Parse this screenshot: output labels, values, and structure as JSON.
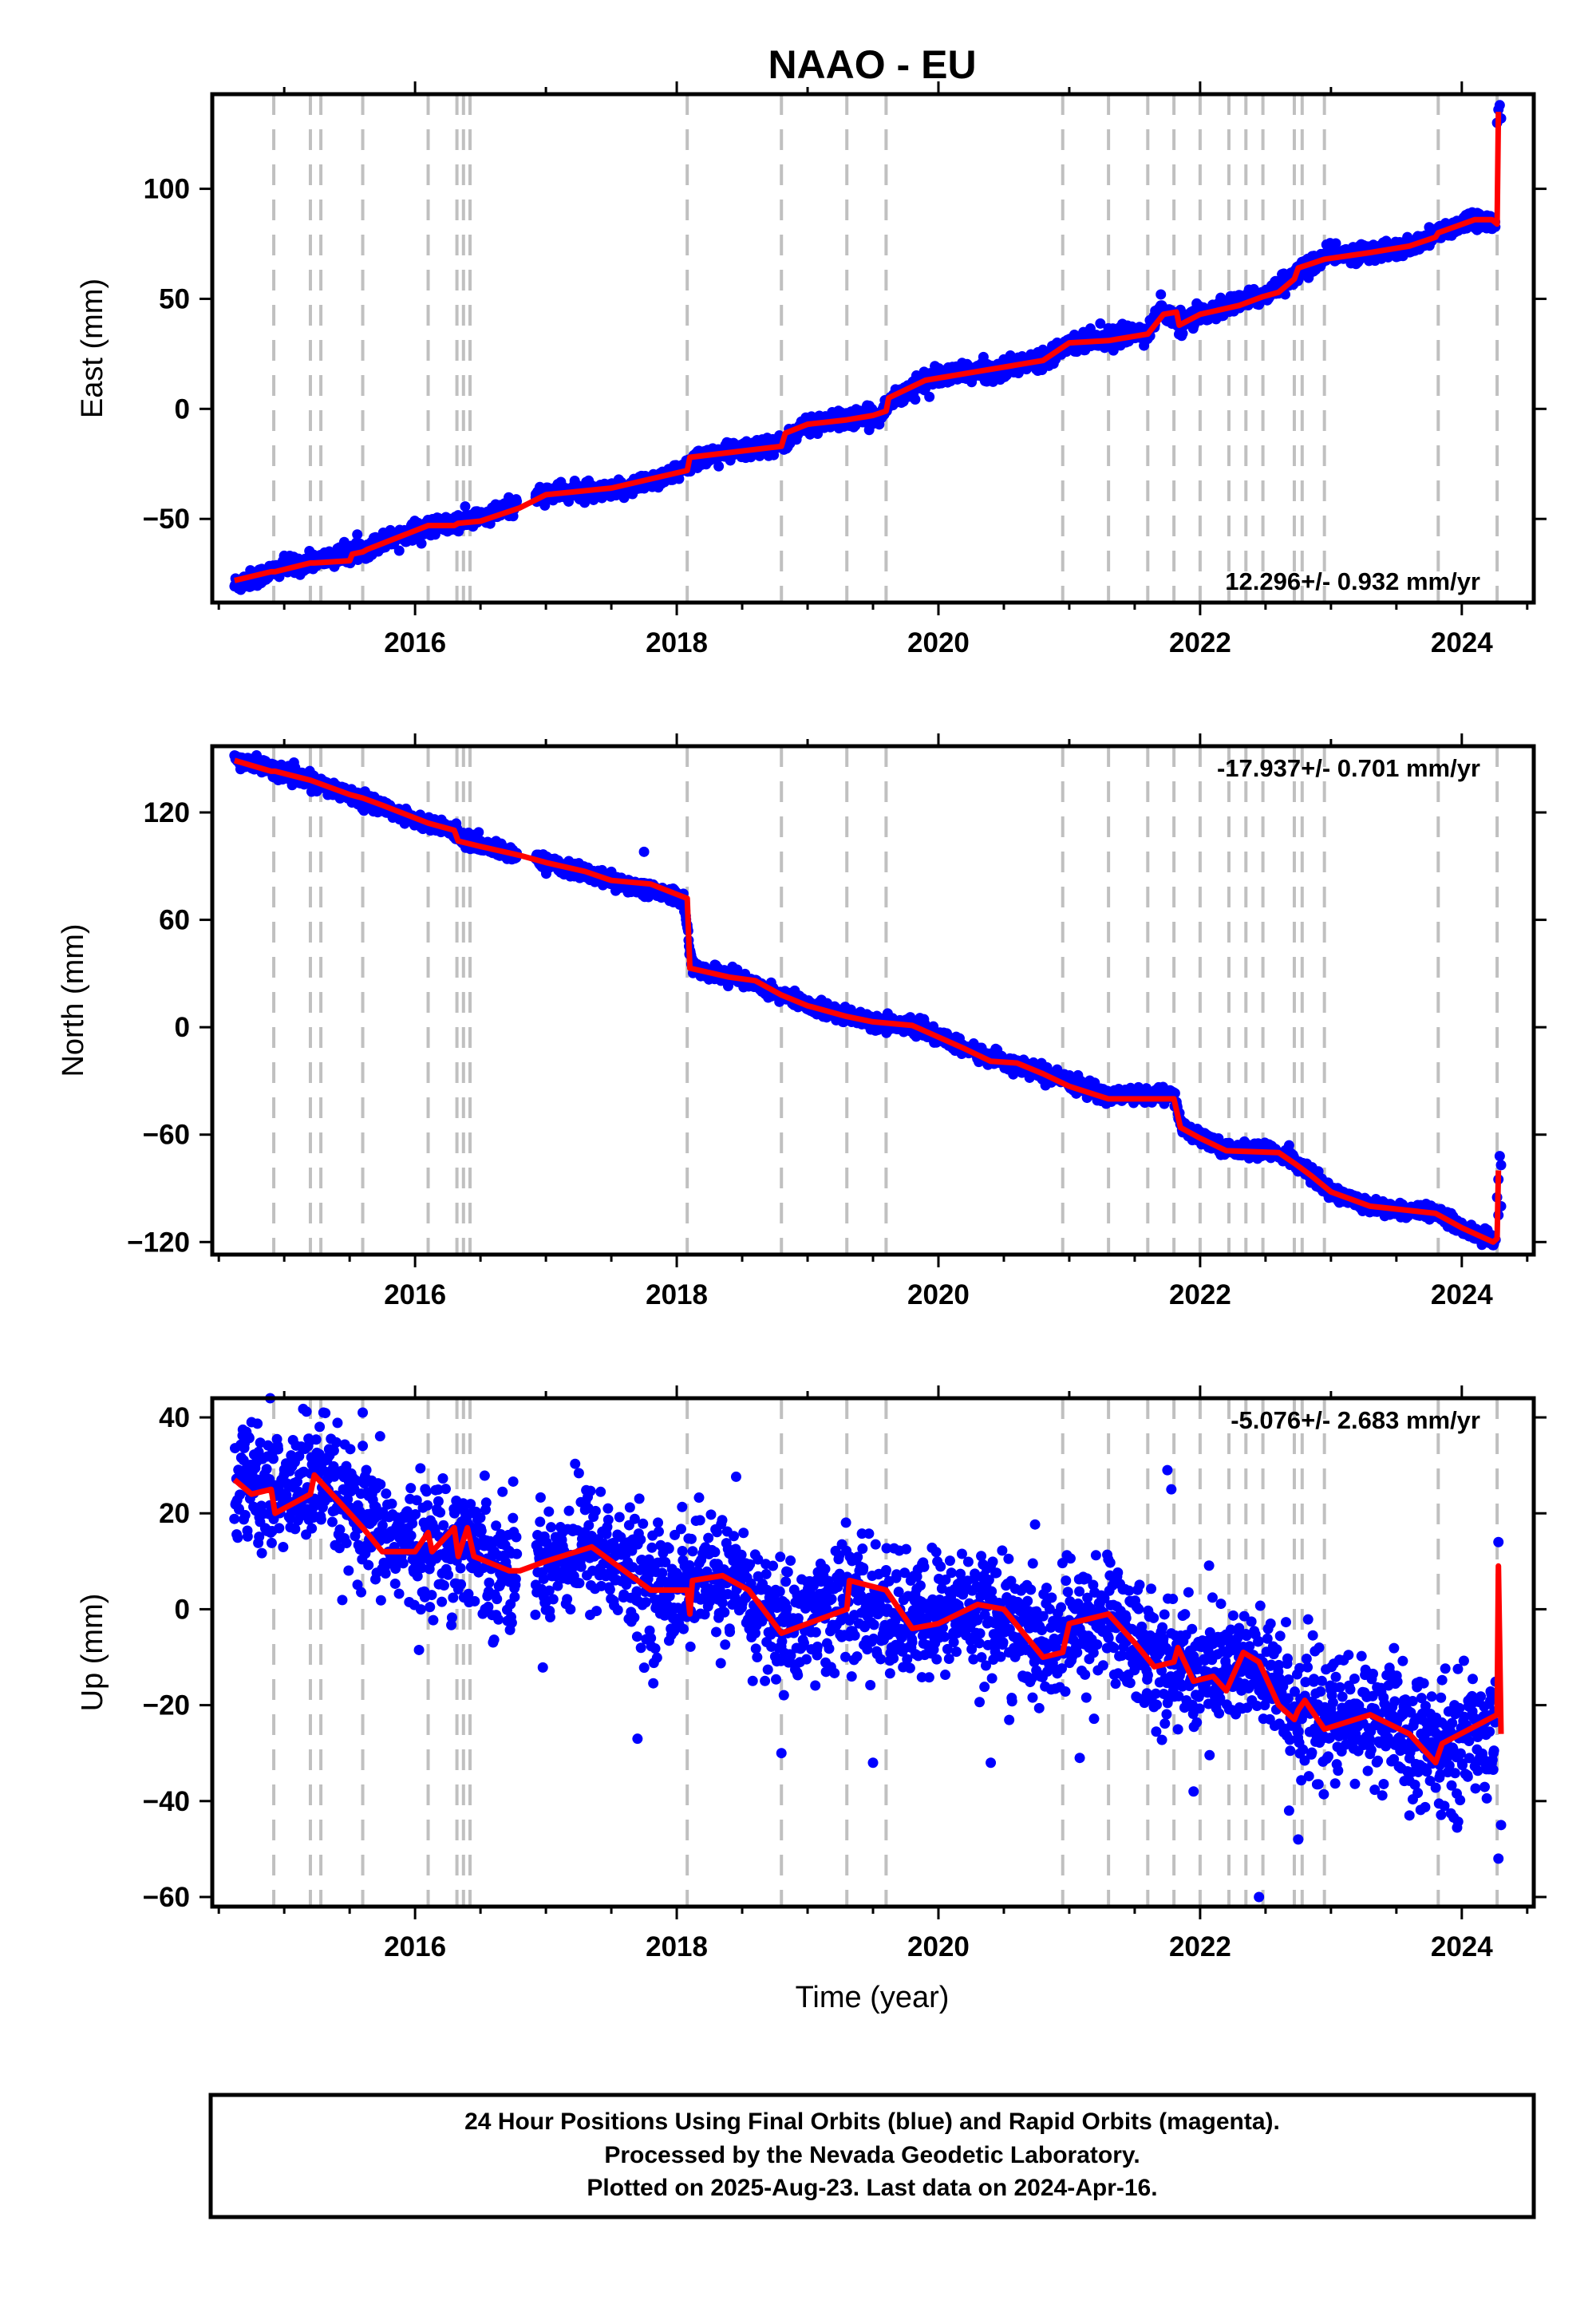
{
  "title": "NAAO - EU",
  "xlabel": "Time (year)",
  "caption": [
    "24 Hour Positions Using Final Orbits (blue) and Rapid Orbits (magenta).",
    "Processed by the Nevada Geodetic Laboratory.",
    "Plotted on 2025-Aug-23. Last data on 2024-Apr-16."
  ],
  "colors": {
    "points": "#0000ff",
    "model": "#ff0000",
    "events": "#c0c0c0",
    "frame": "#000000"
  },
  "chart_data": [
    {
      "type": "scatter",
      "component": "East",
      "ylabel": "East (mm)",
      "rate_text": "12.296+/- 0.932 mm/yr",
      "rate_position": "bottom-right",
      "xlim": [
        2014.45,
        2024.55
      ],
      "ylim": [
        -88,
        143
      ],
      "xticks": [
        2016,
        2018,
        2020,
        2022,
        2024
      ],
      "yticks": [
        -50,
        0,
        50,
        100
      ],
      "ytick_labels": [
        "−50",
        "0",
        "50",
        "100"
      ],
      "scatter_spread": 2.0,
      "model_line": [
        [
          2014.62,
          -78
        ],
        [
          2014.9,
          -74
        ],
        [
          2014.93,
          -74
        ],
        [
          2015.2,
          -70
        ],
        [
          2015.23,
          -70
        ],
        [
          2015.5,
          -69
        ],
        [
          2015.52,
          -66
        ],
        [
          2015.6,
          -65
        ],
        [
          2015.63,
          -64
        ],
        [
          2016.1,
          -53
        ],
        [
          2016.3,
          -53
        ],
        [
          2016.33,
          -52
        ],
        [
          2016.5,
          -51
        ],
        [
          2016.8,
          -45
        ],
        [
          2017.0,
          -39
        ],
        [
          2017.5,
          -36
        ],
        [
          2018.08,
          -28
        ],
        [
          2018.1,
          -22
        ],
        [
          2018.8,
          -17
        ],
        [
          2018.83,
          -11
        ],
        [
          2019.0,
          -7
        ],
        [
          2019.3,
          -5
        ],
        [
          2019.5,
          -3
        ],
        [
          2019.6,
          -1
        ],
        [
          2019.62,
          5
        ],
        [
          2019.9,
          13
        ],
        [
          2020.2,
          16
        ],
        [
          2020.6,
          20
        ],
        [
          2020.8,
          22
        ],
        [
          2021.0,
          30
        ],
        [
          2021.3,
          31
        ],
        [
          2021.6,
          34
        ],
        [
          2021.72,
          43
        ],
        [
          2021.82,
          44
        ],
        [
          2021.84,
          38
        ],
        [
          2022.0,
          43
        ],
        [
          2022.3,
          47
        ],
        [
          2022.48,
          51
        ],
        [
          2022.6,
          53
        ],
        [
          2022.72,
          59
        ],
        [
          2022.75,
          64
        ],
        [
          2022.95,
          68
        ],
        [
          2023.3,
          71
        ],
        [
          2023.6,
          74
        ],
        [
          2023.8,
          78
        ],
        [
          2023.82,
          80
        ],
        [
          2024.1,
          86
        ],
        [
          2024.23,
          86
        ],
        [
          2024.27,
          84
        ],
        [
          2024.28,
          135
        ]
      ],
      "scatter_anchors": [
        [
          2014.62,
          -80
        ],
        [
          2015.0,
          -72
        ],
        [
          2015.5,
          -66
        ],
        [
          2016.0,
          -55
        ],
        [
          2016.3,
          -52
        ],
        [
          2016.6,
          -48
        ],
        [
          2017.0,
          -38
        ],
        [
          2017.5,
          -38
        ],
        [
          2018.05,
          -28
        ],
        [
          2018.15,
          -22
        ],
        [
          2018.8,
          -16
        ],
        [
          2019.0,
          -7
        ],
        [
          2019.55,
          -3
        ],
        [
          2019.65,
          5
        ],
        [
          2020.0,
          15
        ],
        [
          2020.5,
          18
        ],
        [
          2020.8,
          23
        ],
        [
          2021.0,
          30
        ],
        [
          2021.6,
          35
        ],
        [
          2021.7,
          45
        ],
        [
          2021.85,
          38
        ],
        [
          2022.0,
          43
        ],
        [
          2022.5,
          52
        ],
        [
          2022.8,
          64
        ],
        [
          2023.0,
          70
        ],
        [
          2023.6,
          73
        ],
        [
          2023.9,
          82
        ],
        [
          2024.1,
          87
        ],
        [
          2024.26,
          83
        ]
      ],
      "gaps": [
        [
          2016.78,
          2016.92
        ]
      ],
      "outliers": [
        [
          2024.27,
          130
        ],
        [
          2024.28,
          136
        ],
        [
          2024.29,
          138
        ],
        [
          2024.3,
          132
        ],
        [
          2021.7,
          52
        ],
        [
          2021.85,
          45
        ],
        [
          2022.65,
          52
        ]
      ]
    },
    {
      "type": "scatter",
      "component": "North",
      "ylabel": "North (mm)",
      "rate_text": "-17.937+/- 0.701 mm/yr",
      "rate_position": "top-right",
      "xlim": [
        2014.45,
        2024.55
      ],
      "ylim": [
        -127,
        157
      ],
      "xticks": [
        2016,
        2018,
        2020,
        2022,
        2024
      ],
      "yticks": [
        -120,
        -60,
        0,
        60,
        120
      ],
      "ytick_labels": [
        "−120",
        "−60",
        "0",
        "60",
        "120"
      ],
      "scatter_spread": 2.0,
      "model_line": [
        [
          2014.62,
          149
        ],
        [
          2014.9,
          143
        ],
        [
          2014.93,
          143
        ],
        [
          2015.2,
          138
        ],
        [
          2015.5,
          130
        ],
        [
          2015.6,
          128
        ],
        [
          2015.75,
          124
        ],
        [
          2016.1,
          114
        ],
        [
          2016.3,
          110
        ],
        [
          2016.33,
          104
        ],
        [
          2016.5,
          101
        ],
        [
          2016.8,
          96
        ],
        [
          2017.0,
          92
        ],
        [
          2017.3,
          87
        ],
        [
          2017.5,
          82
        ],
        [
          2017.8,
          80
        ],
        [
          2018.08,
          72
        ],
        [
          2018.1,
          33
        ],
        [
          2018.4,
          28
        ],
        [
          2018.6,
          26
        ],
        [
          2018.8,
          18
        ],
        [
          2019.0,
          12
        ],
        [
          2019.3,
          6
        ],
        [
          2019.5,
          3
        ],
        [
          2019.8,
          1
        ],
        [
          2020.2,
          -12
        ],
        [
          2020.4,
          -19
        ],
        [
          2020.6,
          -20
        ],
        [
          2020.8,
          -26
        ],
        [
          2021.0,
          -33
        ],
        [
          2021.3,
          -40
        ],
        [
          2021.8,
          -40
        ],
        [
          2021.85,
          -56
        ],
        [
          2022.0,
          -62
        ],
        [
          2022.2,
          -69
        ],
        [
          2022.6,
          -70
        ],
        [
          2022.72,
          -76
        ],
        [
          2022.85,
          -83
        ],
        [
          2023.0,
          -92
        ],
        [
          2023.3,
          -100
        ],
        [
          2023.8,
          -104
        ],
        [
          2024.0,
          -112
        ],
        [
          2024.24,
          -120
        ],
        [
          2024.27,
          -118
        ],
        [
          2024.28,
          -80
        ]
      ],
      "scatter_anchors": [
        [
          2014.62,
          150
        ],
        [
          2015.0,
          142
        ],
        [
          2015.5,
          130
        ],
        [
          2016.0,
          116
        ],
        [
          2016.3,
          110
        ],
        [
          2016.4,
          104
        ],
        [
          2016.8,
          96
        ],
        [
          2017.0,
          92
        ],
        [
          2017.5,
          82
        ],
        [
          2018.05,
          72
        ],
        [
          2018.12,
          33
        ],
        [
          2018.5,
          27
        ],
        [
          2018.8,
          18
        ],
        [
          2019.0,
          12
        ],
        [
          2019.5,
          3
        ],
        [
          2019.8,
          1
        ],
        [
          2020.2,
          -12
        ],
        [
          2020.5,
          -19
        ],
        [
          2020.8,
          -26
        ],
        [
          2021.3,
          -38
        ],
        [
          2021.8,
          -38
        ],
        [
          2021.86,
          -56
        ],
        [
          2022.2,
          -68
        ],
        [
          2022.6,
          -70
        ],
        [
          2022.75,
          -76
        ],
        [
          2023.0,
          -92
        ],
        [
          2023.3,
          -100
        ],
        [
          2023.8,
          -104
        ],
        [
          2024.0,
          -112
        ],
        [
          2024.26,
          -120
        ]
      ],
      "gaps": [
        [
          2016.78,
          2016.92
        ]
      ],
      "outliers": [
        [
          2017.75,
          98
        ],
        [
          2021.78,
          -36
        ],
        [
          2022.68,
          -66
        ],
        [
          2024.29,
          -72
        ],
        [
          2024.3,
          -77
        ],
        [
          2024.28,
          -85
        ],
        [
          2024.27,
          -95
        ],
        [
          2024.3,
          -100
        ],
        [
          2024.28,
          -105
        ]
      ]
    },
    {
      "type": "scatter",
      "component": "Up",
      "ylabel": "Up (mm)",
      "rate_text": "-5.076+/- 2.683 mm/yr",
      "rate_position": "top-right",
      "xlim": [
        2014.45,
        2024.55
      ],
      "ylim": [
        -62,
        44
      ],
      "xticks": [
        2016,
        2018,
        2020,
        2022,
        2024
      ],
      "yticks": [
        -60,
        -40,
        -20,
        0,
        20,
        40
      ],
      "ytick_labels": [
        "−60",
        "−40",
        "−20",
        "0",
        "20",
        "40"
      ],
      "scatter_spread": 6.5,
      "model_line": [
        [
          2014.62,
          27
        ],
        [
          2014.75,
          24
        ],
        [
          2014.9,
          25
        ],
        [
          2014.93,
          20
        ],
        [
          2015.2,
          24
        ],
        [
          2015.23,
          28
        ],
        [
          2015.5,
          20
        ],
        [
          2015.6,
          17
        ],
        [
          2015.75,
          12
        ],
        [
          2016.0,
          12
        ],
        [
          2016.1,
          16
        ],
        [
          2016.13,
          12
        ],
        [
          2016.3,
          17
        ],
        [
          2016.33,
          11
        ],
        [
          2016.4,
          17
        ],
        [
          2016.45,
          11
        ],
        [
          2016.72,
          8
        ],
        [
          2016.8,
          8
        ],
        [
          2017.0,
          10
        ],
        [
          2017.35,
          13
        ],
        [
          2017.5,
          10
        ],
        [
          2017.8,
          4
        ],
        [
          2018.08,
          4
        ],
        [
          2018.1,
          -1
        ],
        [
          2018.12,
          6
        ],
        [
          2018.35,
          7
        ],
        [
          2018.55,
          4
        ],
        [
          2018.8,
          -5
        ],
        [
          2019.1,
          -2
        ],
        [
          2019.3,
          0
        ],
        [
          2019.32,
          6
        ],
        [
          2019.6,
          4
        ],
        [
          2019.8,
          -4
        ],
        [
          2020.0,
          -3
        ],
        [
          2020.3,
          1
        ],
        [
          2020.5,
          0
        ],
        [
          2020.8,
          -10
        ],
        [
          2020.95,
          -9
        ],
        [
          2021.0,
          -3
        ],
        [
          2021.3,
          -1
        ],
        [
          2021.5,
          -7
        ],
        [
          2021.65,
          -12
        ],
        [
          2021.8,
          -11
        ],
        [
          2021.83,
          -8
        ],
        [
          2021.95,
          -15
        ],
        [
          2022.1,
          -14
        ],
        [
          2022.2,
          -17
        ],
        [
          2022.33,
          -9
        ],
        [
          2022.45,
          -11
        ],
        [
          2022.6,
          -20
        ],
        [
          2022.72,
          -23
        ],
        [
          2022.75,
          -21
        ],
        [
          2022.8,
          -19
        ],
        [
          2022.95,
          -25
        ],
        [
          2023.3,
          -22
        ],
        [
          2023.6,
          -26
        ],
        [
          2023.8,
          -32
        ],
        [
          2023.85,
          -28
        ],
        [
          2024.27,
          -22
        ],
        [
          2024.28,
          9
        ],
        [
          2024.3,
          -26
        ]
      ],
      "scatter_anchors": [
        [
          2014.62,
          28
        ],
        [
          2014.92,
          24
        ],
        [
          2015.25,
          27
        ],
        [
          2015.6,
          17
        ],
        [
          2016.0,
          13
        ],
        [
          2016.4,
          14
        ],
        [
          2016.72,
          8
        ],
        [
          2017.0,
          10
        ],
        [
          2017.35,
          14
        ],
        [
          2017.8,
          4
        ],
        [
          2018.12,
          6
        ],
        [
          2018.35,
          7
        ],
        [
          2018.8,
          -4
        ],
        [
          2019.3,
          2
        ],
        [
          2019.8,
          -3
        ],
        [
          2020.3,
          1
        ],
        [
          2020.8,
          -8
        ],
        [
          2021.3,
          -1
        ],
        [
          2021.65,
          -10
        ],
        [
          2021.95,
          -13
        ],
        [
          2022.33,
          -11
        ],
        [
          2022.72,
          -20
        ],
        [
          2023.0,
          -24
        ],
        [
          2023.3,
          -22
        ],
        [
          2023.8,
          -30
        ],
        [
          2024.26,
          -24
        ]
      ],
      "gaps": [
        [
          2016.78,
          2016.92
        ]
      ],
      "outliers": [
        [
          2015.3,
          41
        ],
        [
          2015.6,
          41
        ],
        [
          2014.75,
          39
        ],
        [
          2017.7,
          -27
        ],
        [
          2018.8,
          -30
        ],
        [
          2019.5,
          -32
        ],
        [
          2020.4,
          -32
        ],
        [
          2021.08,
          -31
        ],
        [
          2021.75,
          29
        ],
        [
          2021.78,
          25
        ],
        [
          2021.95,
          -38
        ],
        [
          2022.45,
          -60
        ],
        [
          2022.68,
          -42
        ],
        [
          2022.75,
          -48
        ],
        [
          2023.6,
          -43
        ],
        [
          2024.28,
          -52
        ],
        [
          2024.3,
          -45
        ],
        [
          2024.28,
          14
        ]
      ]
    }
  ],
  "event_lines": [
    2014.92,
    2015.2,
    2015.28,
    2015.6,
    2016.1,
    2016.32,
    2016.37,
    2016.42,
    2018.08,
    2018.8,
    2019.3,
    2019.6,
    2020.95,
    2021.3,
    2021.6,
    2021.8,
    2022.0,
    2022.22,
    2022.35,
    2022.48,
    2022.72,
    2022.78,
    2022.95,
    2023.82,
    2024.27
  ]
}
